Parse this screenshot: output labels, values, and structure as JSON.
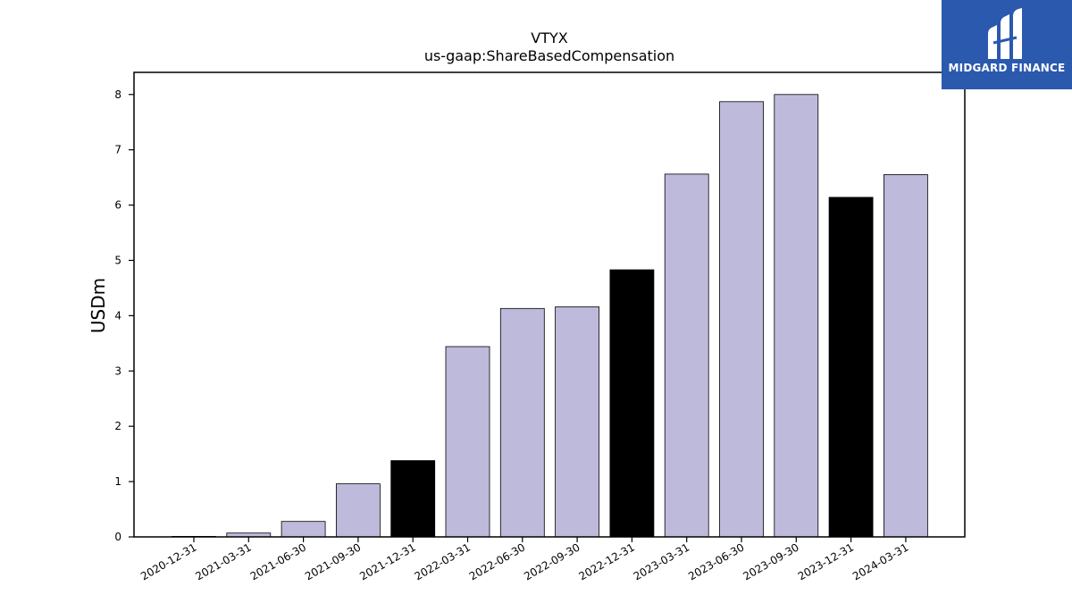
{
  "chart_data": {
    "type": "bar",
    "title": "VTYX",
    "subtitle": "us-gaap:ShareBasedCompensation",
    "ylabel": "USDm",
    "xlabel": "",
    "ylim": [
      0,
      8.4
    ],
    "yticks": [
      0,
      1,
      2,
      3,
      4,
      5,
      6,
      7,
      8
    ],
    "categories": [
      "2020-12-31",
      "2021-03-31",
      "2021-06-30",
      "2021-09-30",
      "2021-12-31",
      "2022-03-31",
      "2022-06-30",
      "2022-09-30",
      "2022-12-31",
      "2023-03-31",
      "2023-06-30",
      "2023-09-30",
      "2023-12-31",
      "2024-03-31"
    ],
    "values": [
      0.01,
      0.07,
      0.28,
      0.96,
      1.38,
      3.44,
      4.13,
      4.16,
      4.83,
      6.56,
      7.87,
      8.0,
      6.14,
      6.55
    ],
    "bar_colors": [
      "#bdbadb",
      "#bdbadb",
      "#bdbadb",
      "#bdbadb",
      "#000000",
      "#bdbadb",
      "#bdbadb",
      "#bdbadb",
      "#000000",
      "#bdbadb",
      "#bdbadb",
      "#bdbadb",
      "#000000",
      "#bdbadb"
    ],
    "grid": false,
    "legend": "none"
  },
  "logo": {
    "text": "MIDGARD FINANCE",
    "background": "#2b59ad"
  }
}
